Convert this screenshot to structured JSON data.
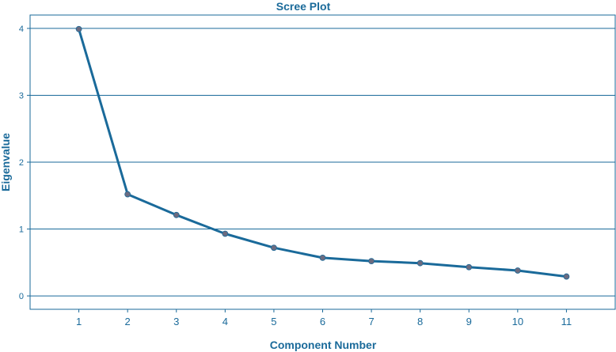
{
  "colors": {
    "frame": "#1a6a9a",
    "text": "#1a6a9a",
    "line": "#1a6a9a",
    "marker": "#6b6b80",
    "background": "#ffffff"
  },
  "chart_data": {
    "type": "line",
    "title": "Scree Plot",
    "xlabel": "Component Number",
    "ylabel": "Eigenvalue",
    "x": [
      1,
      2,
      3,
      4,
      5,
      6,
      7,
      8,
      9,
      10,
      11
    ],
    "x_tick_labels": [
      "1",
      "2",
      "3",
      "4",
      "5",
      "6",
      "7",
      "8",
      "9",
      "10",
      "11"
    ],
    "y_ticks": [
      0,
      1,
      2,
      3,
      4
    ],
    "y_tick_labels": [
      "0",
      "1",
      "2",
      "3",
      "4"
    ],
    "xlim": [
      0,
      12
    ],
    "ylim": [
      -0.2,
      4.2
    ],
    "grid": "horizontal",
    "series": [
      {
        "values": [
          3.99,
          1.52,
          1.21,
          0.93,
          0.72,
          0.57,
          0.52,
          0.49,
          0.43,
          0.38,
          0.29
        ]
      }
    ]
  }
}
